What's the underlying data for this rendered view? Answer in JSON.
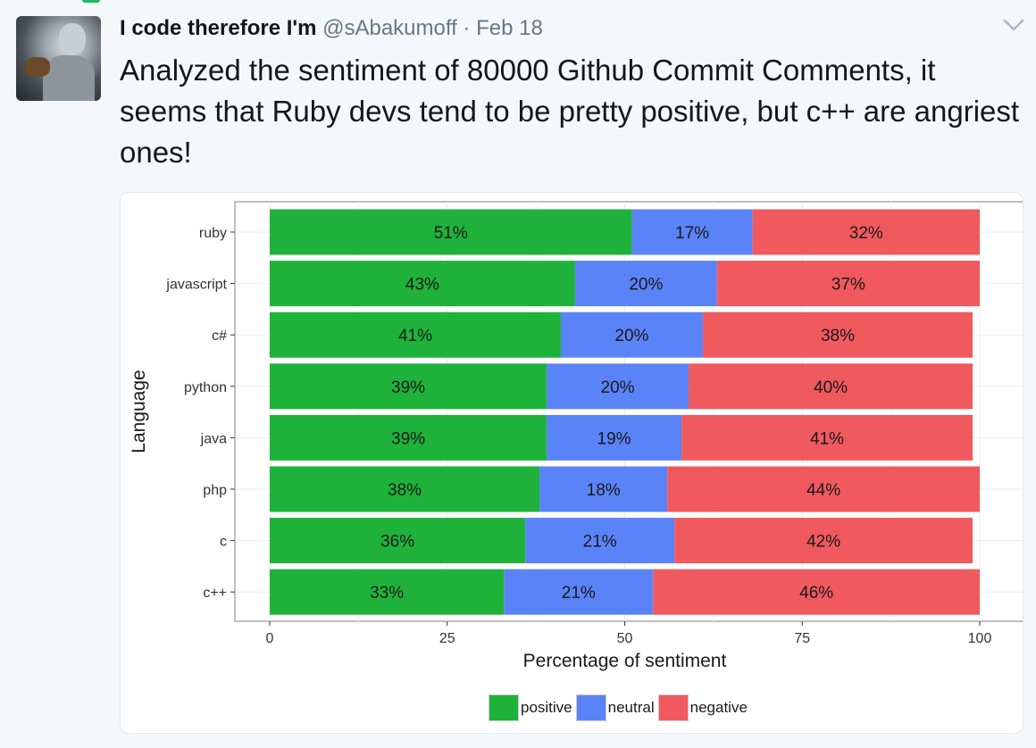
{
  "tweet": {
    "author_name": "I code therefore I'm",
    "handle": "@sAbakumoff",
    "separator": " · ",
    "date": "Feb 18",
    "text": "Analyzed the sentiment of 80000 Github Commit Comments, it seems that Ruby devs tend to be pretty positive, but c++ are angriest ones!"
  },
  "icons": {
    "menu": "chevron-down-icon",
    "avatar": "avatar-image"
  },
  "colors": {
    "positive": "#1eb23b",
    "neutral": "#5b83f8",
    "negative": "#f0595e",
    "accent": "#17bf63"
  },
  "chart_data": {
    "type": "bar",
    "orientation": "horizontal",
    "stacked": true,
    "title": "",
    "xlabel": "Percentage of sentiment",
    "ylabel": "Language",
    "xlim": [
      0,
      100
    ],
    "xticks": [
      "0",
      "25",
      "50",
      "75",
      "100"
    ],
    "categories": [
      "ruby",
      "javascript",
      "c#",
      "python",
      "java",
      "php",
      "c",
      "c++"
    ],
    "series": [
      {
        "name": "positive",
        "values": [
          51,
          43,
          41,
          39,
          39,
          38,
          36,
          33
        ],
        "labels": [
          "51%",
          "43%",
          "41%",
          "39%",
          "39%",
          "38%",
          "36%",
          "33%"
        ]
      },
      {
        "name": "neutral",
        "values": [
          17,
          20,
          20,
          20,
          19,
          18,
          21,
          21
        ],
        "labels": [
          "17%",
          "20%",
          "20%",
          "20%",
          "19%",
          "18%",
          "21%",
          "21%"
        ]
      },
      {
        "name": "negative",
        "values": [
          32,
          37,
          38,
          40,
          41,
          44,
          42,
          46
        ],
        "labels": [
          "32%",
          "37%",
          "38%",
          "40%",
          "41%",
          "44%",
          "42%",
          "46%"
        ]
      }
    ],
    "grid": true,
    "legend_position": "bottom"
  }
}
